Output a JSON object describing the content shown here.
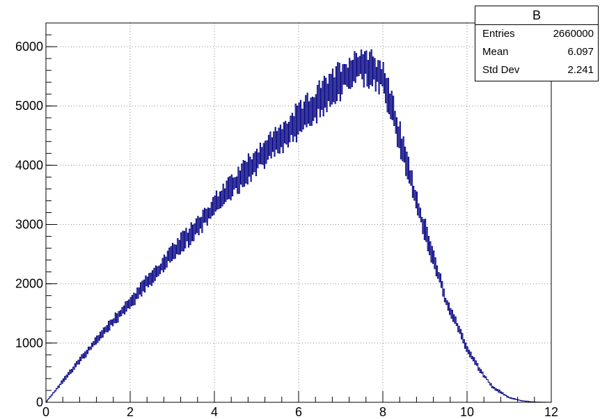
{
  "chart_data": {
    "type": "histogram",
    "title": "",
    "xlabel": "",
    "ylabel": "",
    "xlim": [
      0,
      12
    ],
    "ylim": [
      0,
      6400
    ],
    "grid": true,
    "line_color": "#000080",
    "x_ticks": [
      0,
      2,
      4,
      6,
      8,
      10,
      12
    ],
    "y_ticks": [
      0,
      1000,
      2000,
      3000,
      4000,
      5000,
      6000
    ],
    "envelope": {
      "x": [
        0,
        0.5,
        1,
        1.5,
        2,
        2.5,
        3,
        3.5,
        4,
        4.5,
        5,
        5.5,
        6,
        6.5,
        7,
        7.5,
        7.8,
        8.0,
        8.2,
        8.5,
        8.8,
        9.0,
        9.3,
        9.5,
        9.8,
        10.0,
        10.3,
        10.6,
        11.0,
        11.3,
        11.6,
        12.0
      ],
      "y": [
        0,
        450,
        870,
        1300,
        1680,
        2100,
        2500,
        2900,
        3300,
        3700,
        4100,
        4400,
        4750,
        5100,
        5450,
        5700,
        5600,
        5450,
        5000,
        4200,
        3400,
        2900,
        2200,
        1700,
        1250,
        900,
        550,
        260,
        80,
        25,
        5,
        0
      ]
    },
    "stats": {
      "name": "B",
      "rows": [
        {
          "label": "Entries",
          "value": "2660000"
        },
        {
          "label": "Mean",
          "value": "6.097"
        },
        {
          "label": "Std Dev",
          "value": "2.241"
        }
      ]
    }
  }
}
